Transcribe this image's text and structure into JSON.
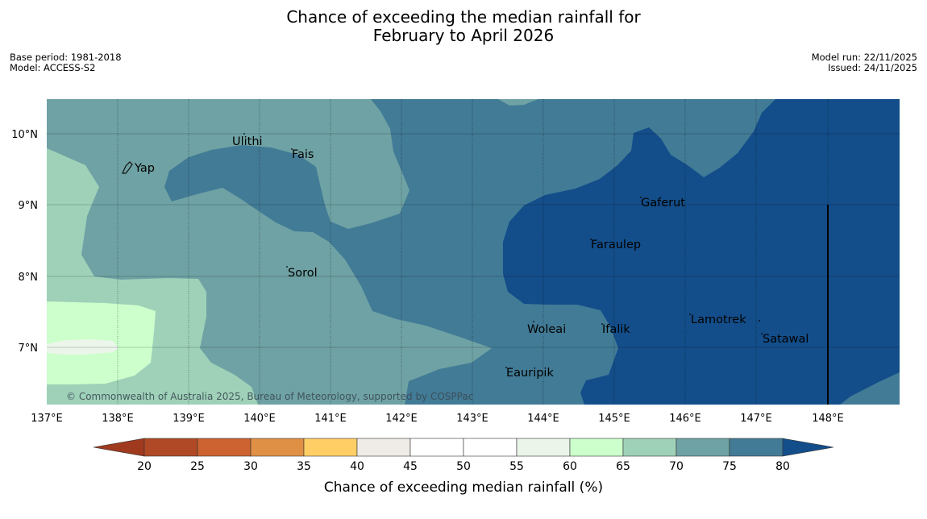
{
  "title": {
    "line1": "Chance of exceeding the median rainfall for",
    "line2": "February to April 2026"
  },
  "meta": {
    "base_period": "Base period: 1981-2018",
    "model": "Model: ACCESS-S2",
    "model_run": "Model run: 22/11/2025",
    "issued": "Issued: 24/11/2025"
  },
  "map": {
    "lon_ticks": [
      "137°E",
      "138°E",
      "139°E",
      "140°E",
      "141°E",
      "142°E",
      "143°E",
      "144°E",
      "145°E",
      "146°E",
      "147°E",
      "148°E"
    ],
    "lat_ticks": [
      "10°N",
      "9°N",
      "8°N",
      "7°N"
    ],
    "places": [
      {
        "name": "Yap"
      },
      {
        "name": "Ulithi"
      },
      {
        "name": "Fais"
      },
      {
        "name": "Gaferut"
      },
      {
        "name": "Faraulep"
      },
      {
        "name": "Sorol"
      },
      {
        "name": "Lamotrek"
      },
      {
        "name": "Woleai"
      },
      {
        "name": "Ifalik"
      },
      {
        "name": "Satawal"
      },
      {
        "name": "Eauripik"
      }
    ],
    "copyright": "© Commonwealth of Australia 2025, Bureau of Meteorology, supported by COSPPac"
  },
  "colorbar": {
    "label": "Chance of exceeding median rainfall (%)",
    "ticks": [
      "20",
      "25",
      "30",
      "35",
      "40",
      "45",
      "50",
      "55",
      "60",
      "65",
      "70",
      "75",
      "80"
    ],
    "colors": {
      "below20": "#9f3a1e",
      "c20_25": "#b04a26",
      "c25_30": "#cd6330",
      "c30_35": "#e09045",
      "c35_40": "#ffcf66",
      "c40_45": "#efebe7",
      "c45_50": "#ffffff",
      "c50_55": "#ffffff",
      "c55_60": "#ebf5ea",
      "c60_65": "#ccffcc",
      "c65_70": "#9fd1b8",
      "c70_75": "#6fa2a4",
      "c75_80": "#427b96",
      "above80": "#134e8a"
    }
  }
}
